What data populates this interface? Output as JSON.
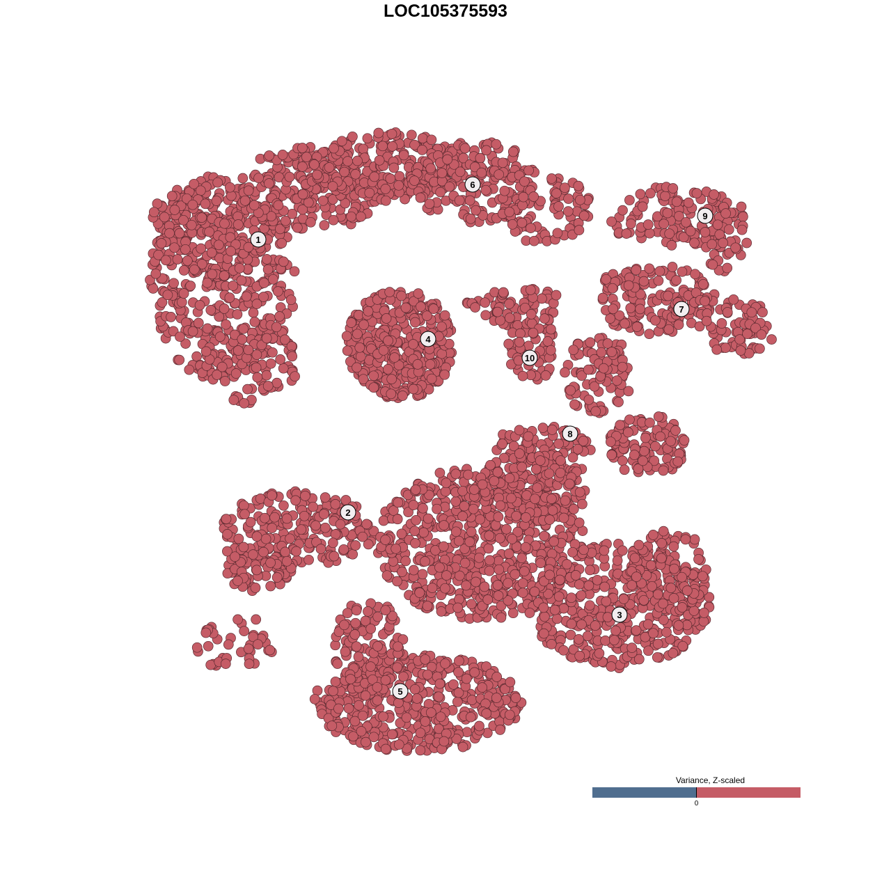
{
  "chart_data": {
    "type": "scatter",
    "title": "LOC105375593",
    "xlabel": "",
    "ylabel": "",
    "grid": false,
    "axes_visible": false,
    "point_color": "#c55c66",
    "point_stroke": "#5a2a30",
    "cluster_labels": [
      "1",
      "2",
      "3",
      "4",
      "5",
      "6",
      "7",
      "8",
      "9",
      "10"
    ],
    "legend": {
      "title": "Variance, Z-scaled",
      "tick": "0",
      "low_color": "#506e8f",
      "high_color": "#c55c66",
      "placement": "bottom-right"
    }
  }
}
